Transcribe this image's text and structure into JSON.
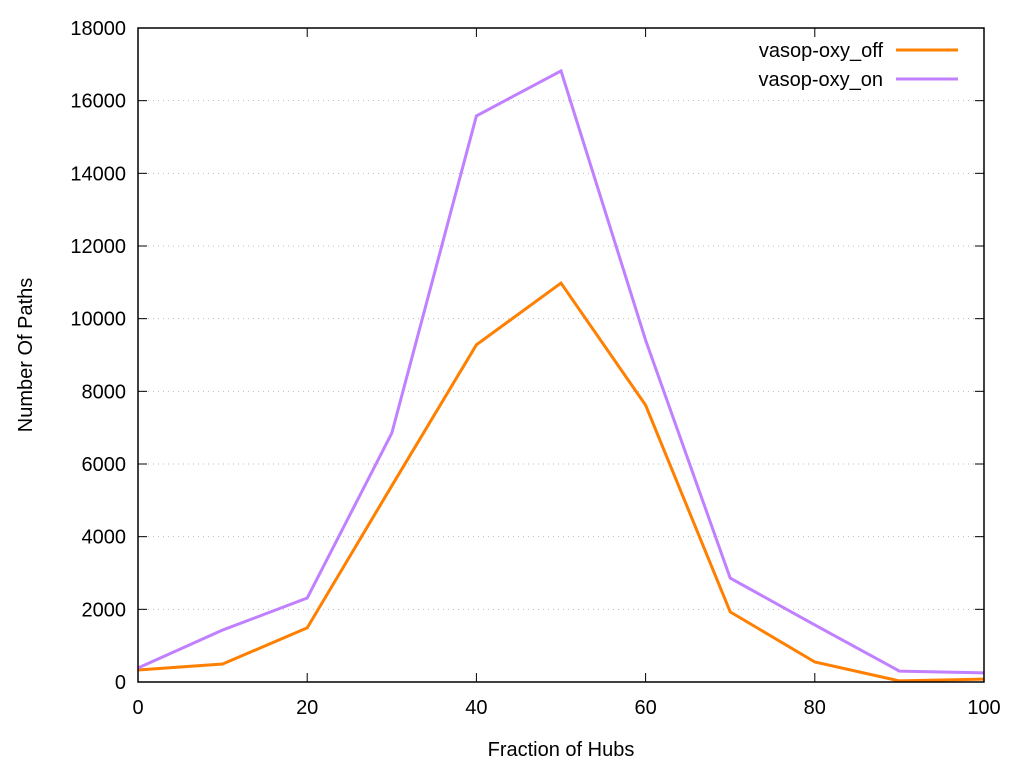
{
  "chart_data": {
    "type": "line",
    "title": "",
    "xlabel": "Fraction of Hubs",
    "ylabel": "Number Of Paths",
    "xlim": [
      0,
      100
    ],
    "ylim": [
      0,
      18000
    ],
    "xticks": [
      0,
      20,
      40,
      60,
      80,
      100
    ],
    "yticks": [
      0,
      2000,
      4000,
      6000,
      8000,
      10000,
      12000,
      14000,
      16000,
      18000
    ],
    "grid": "horizontal dotted",
    "legend_position": "top-right",
    "x": [
      0,
      10,
      20,
      30,
      40,
      50,
      60,
      70,
      80,
      90,
      100
    ],
    "series": [
      {
        "name": "vasop-oxy_off",
        "color": "#ff7f00",
        "values": [
          330,
          495,
          1490,
          5400,
          9280,
          10980,
          7620,
          1930,
          550,
          30,
          80
        ]
      },
      {
        "name": "vasop-oxy_on",
        "color": "#c080ff",
        "values": [
          385,
          1430,
          2310,
          6850,
          15580,
          16820,
          9410,
          2860,
          1570,
          300,
          250
        ]
      }
    ]
  }
}
